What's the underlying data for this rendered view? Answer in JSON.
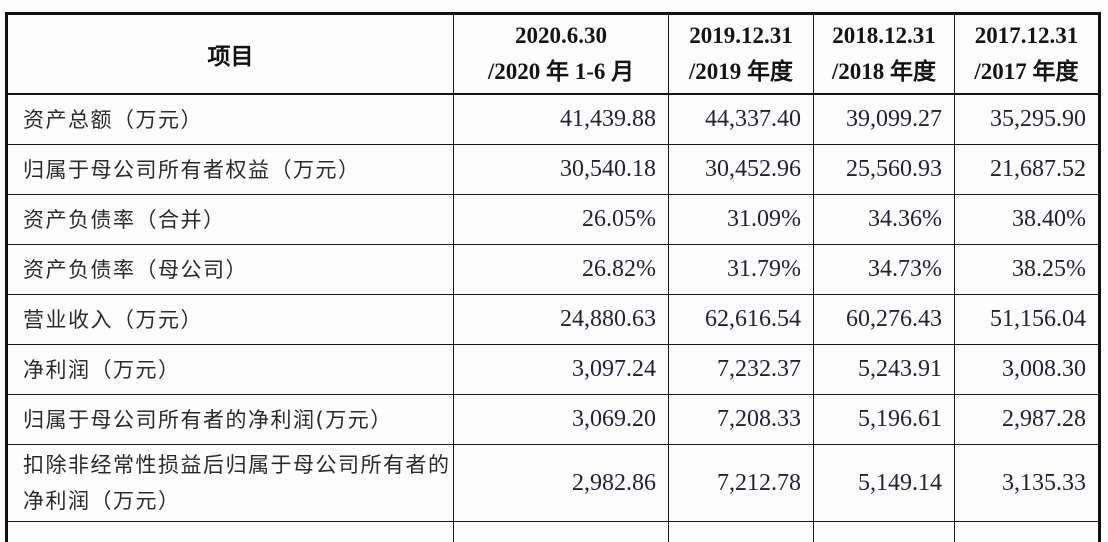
{
  "table": {
    "header": {
      "item_label": "项目",
      "periods": [
        {
          "line1": "2020.6.30",
          "line2": "/2020 年 1-6 月"
        },
        {
          "line1": "2019.12.31",
          "line2": "/2019 年度"
        },
        {
          "line1": "2018.12.31",
          "line2": "/2018 年度"
        },
        {
          "line1": "2017.12.31",
          "line2": "/2017 年度"
        }
      ]
    },
    "rows": [
      {
        "label": "资产总额（万元）",
        "values": [
          "41,439.88",
          "44,337.40",
          "39,099.27",
          "35,295.90"
        ]
      },
      {
        "label": "归属于母公司所有者权益（万元）",
        "values": [
          "30,540.18",
          "30,452.96",
          "25,560.93",
          "21,687.52"
        ]
      },
      {
        "label": "资产负债率（合并）",
        "values": [
          "26.05%",
          "31.09%",
          "34.36%",
          "38.40%"
        ]
      },
      {
        "label": "资产负债率（母公司）",
        "values": [
          "26.82%",
          "31.79%",
          "34.73%",
          "38.25%"
        ]
      },
      {
        "label": "营业收入（万元）",
        "values": [
          "24,880.63",
          "62,616.54",
          "60,276.43",
          "51,156.04"
        ]
      },
      {
        "label": "净利润（万元）",
        "values": [
          "3,097.24",
          "7,232.37",
          "5,243.91",
          "3,008.30"
        ]
      },
      {
        "label": "归属于母公司所有者的净利润(万元）",
        "values": [
          "3,069.20",
          "7,208.33",
          "5,196.61",
          "2,987.28"
        ]
      },
      {
        "label": "扣除非经常性损益后归属于母公司所有者的净利润（万元）",
        "values": [
          "2,982.86",
          "7,212.78",
          "5,149.14",
          "3,135.33"
        ]
      }
    ]
  }
}
